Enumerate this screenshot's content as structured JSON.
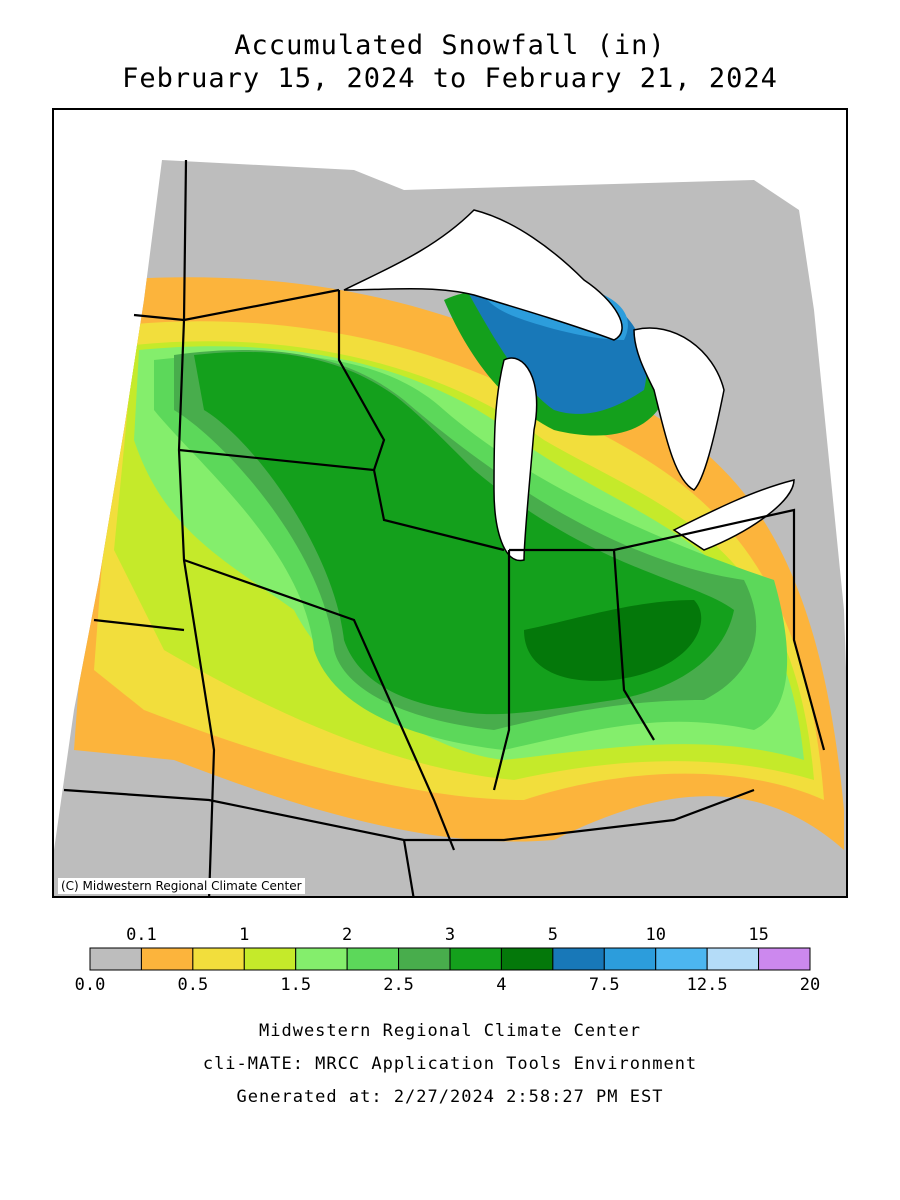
{
  "title": "Accumulated Snowfall (in)",
  "subtitle": "February 15, 2024 to February 21, 2024",
  "copyright": "(C) Midwestern Regional Climate Center",
  "legend": {
    "upper_labels": [
      "0.1",
      "1",
      "2",
      "3",
      "5",
      "10",
      "15"
    ],
    "lower_labels": [
      "0.0",
      "0.5",
      "1.5",
      "2.5",
      "4",
      "7.5",
      "12.5",
      "20"
    ],
    "bins": [
      {
        "color": "#bdbdbd"
      },
      {
        "color": "#fcb43c"
      },
      {
        "color": "#f2de3c"
      },
      {
        "color": "#c5ea2a"
      },
      {
        "color": "#84ee6c"
      },
      {
        "color": "#5cd85a"
      },
      {
        "color": "#48ad4c"
      },
      {
        "color": "#14a01c"
      },
      {
        "color": "#04780a"
      },
      {
        "color": "#1878b8"
      },
      {
        "color": "#2c9ddc"
      },
      {
        "color": "#4cb6f0"
      },
      {
        "color": "#b4dcf8"
      },
      {
        "color": "#cc88ee"
      }
    ]
  },
  "footer": {
    "line1": "Midwestern Regional Climate Center",
    "line2": "cli-MATE: MRCC Application Tools Environment",
    "line3": "Generated at: 2/27/2024 2:58:27 PM EST"
  }
}
